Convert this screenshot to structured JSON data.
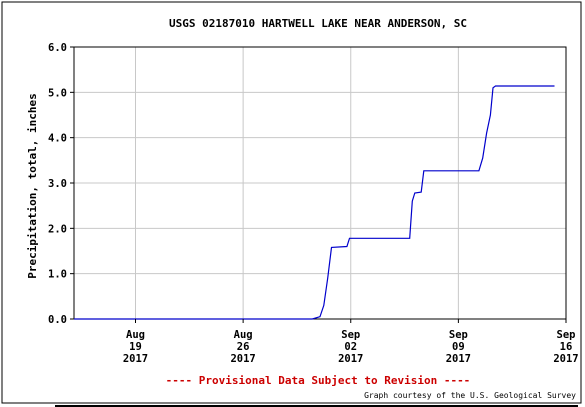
{
  "chart_data": {
    "type": "line",
    "title": "USGS 02187010 HARTWELL LAKE NEAR ANDERSON, SC",
    "ylabel": "Precipitation, total, inches",
    "xlabel": "",
    "ylim": [
      0,
      6
    ],
    "xlim": [
      "2017-08-15",
      "2017-09-16"
    ],
    "yticks": [
      "0.0",
      "1.0",
      "2.0",
      "3.0",
      "4.0",
      "5.0",
      "6.0"
    ],
    "xticks": [
      {
        "date": "2017-08-19",
        "lines": [
          "Aug",
          "19",
          "2017"
        ]
      },
      {
        "date": "2017-08-26",
        "lines": [
          "Aug",
          "26",
          "2017"
        ]
      },
      {
        "date": "2017-09-02",
        "lines": [
          "Sep",
          "02",
          "2017"
        ]
      },
      {
        "date": "2017-09-09",
        "lines": [
          "Sep",
          "09",
          "2017"
        ]
      },
      {
        "date": "2017-09-16",
        "lines": [
          "Sep",
          "16",
          "2017"
        ]
      }
    ],
    "grid": true,
    "line_color": "#0000cc",
    "series": [
      {
        "x": [
          "2017-08-15",
          "2017-08-30 12:00",
          "2017-08-31 00:00",
          "2017-08-31 06:00",
          "2017-08-31 12:00",
          "2017-08-31 18:00",
          "2017-09-01 18:00",
          "2017-09-01 22:00",
          "2017-09-05 20:00",
          "2017-09-06 00:00",
          "2017-09-06 04:00",
          "2017-09-06 14:00",
          "2017-09-06 18:00",
          "2017-09-09 20:00",
          "2017-09-10 08:00",
          "2017-09-10 14:00",
          "2017-09-10 20:00",
          "2017-09-11 02:00",
          "2017-09-11 06:00",
          "2017-09-11 10:00",
          "2017-09-15 06:00"
        ],
        "y": [
          0.0,
          0.0,
          0.05,
          0.3,
          0.9,
          1.58,
          1.6,
          1.78,
          1.78,
          2.6,
          2.78,
          2.8,
          3.27,
          3.27,
          3.27,
          3.55,
          4.1,
          4.5,
          5.1,
          5.14,
          5.14
        ]
      }
    ]
  },
  "disclaimer": "---- Provisional Data Subject to Revision ----",
  "credit": "Graph courtesy of the U.S. Geological Survey"
}
